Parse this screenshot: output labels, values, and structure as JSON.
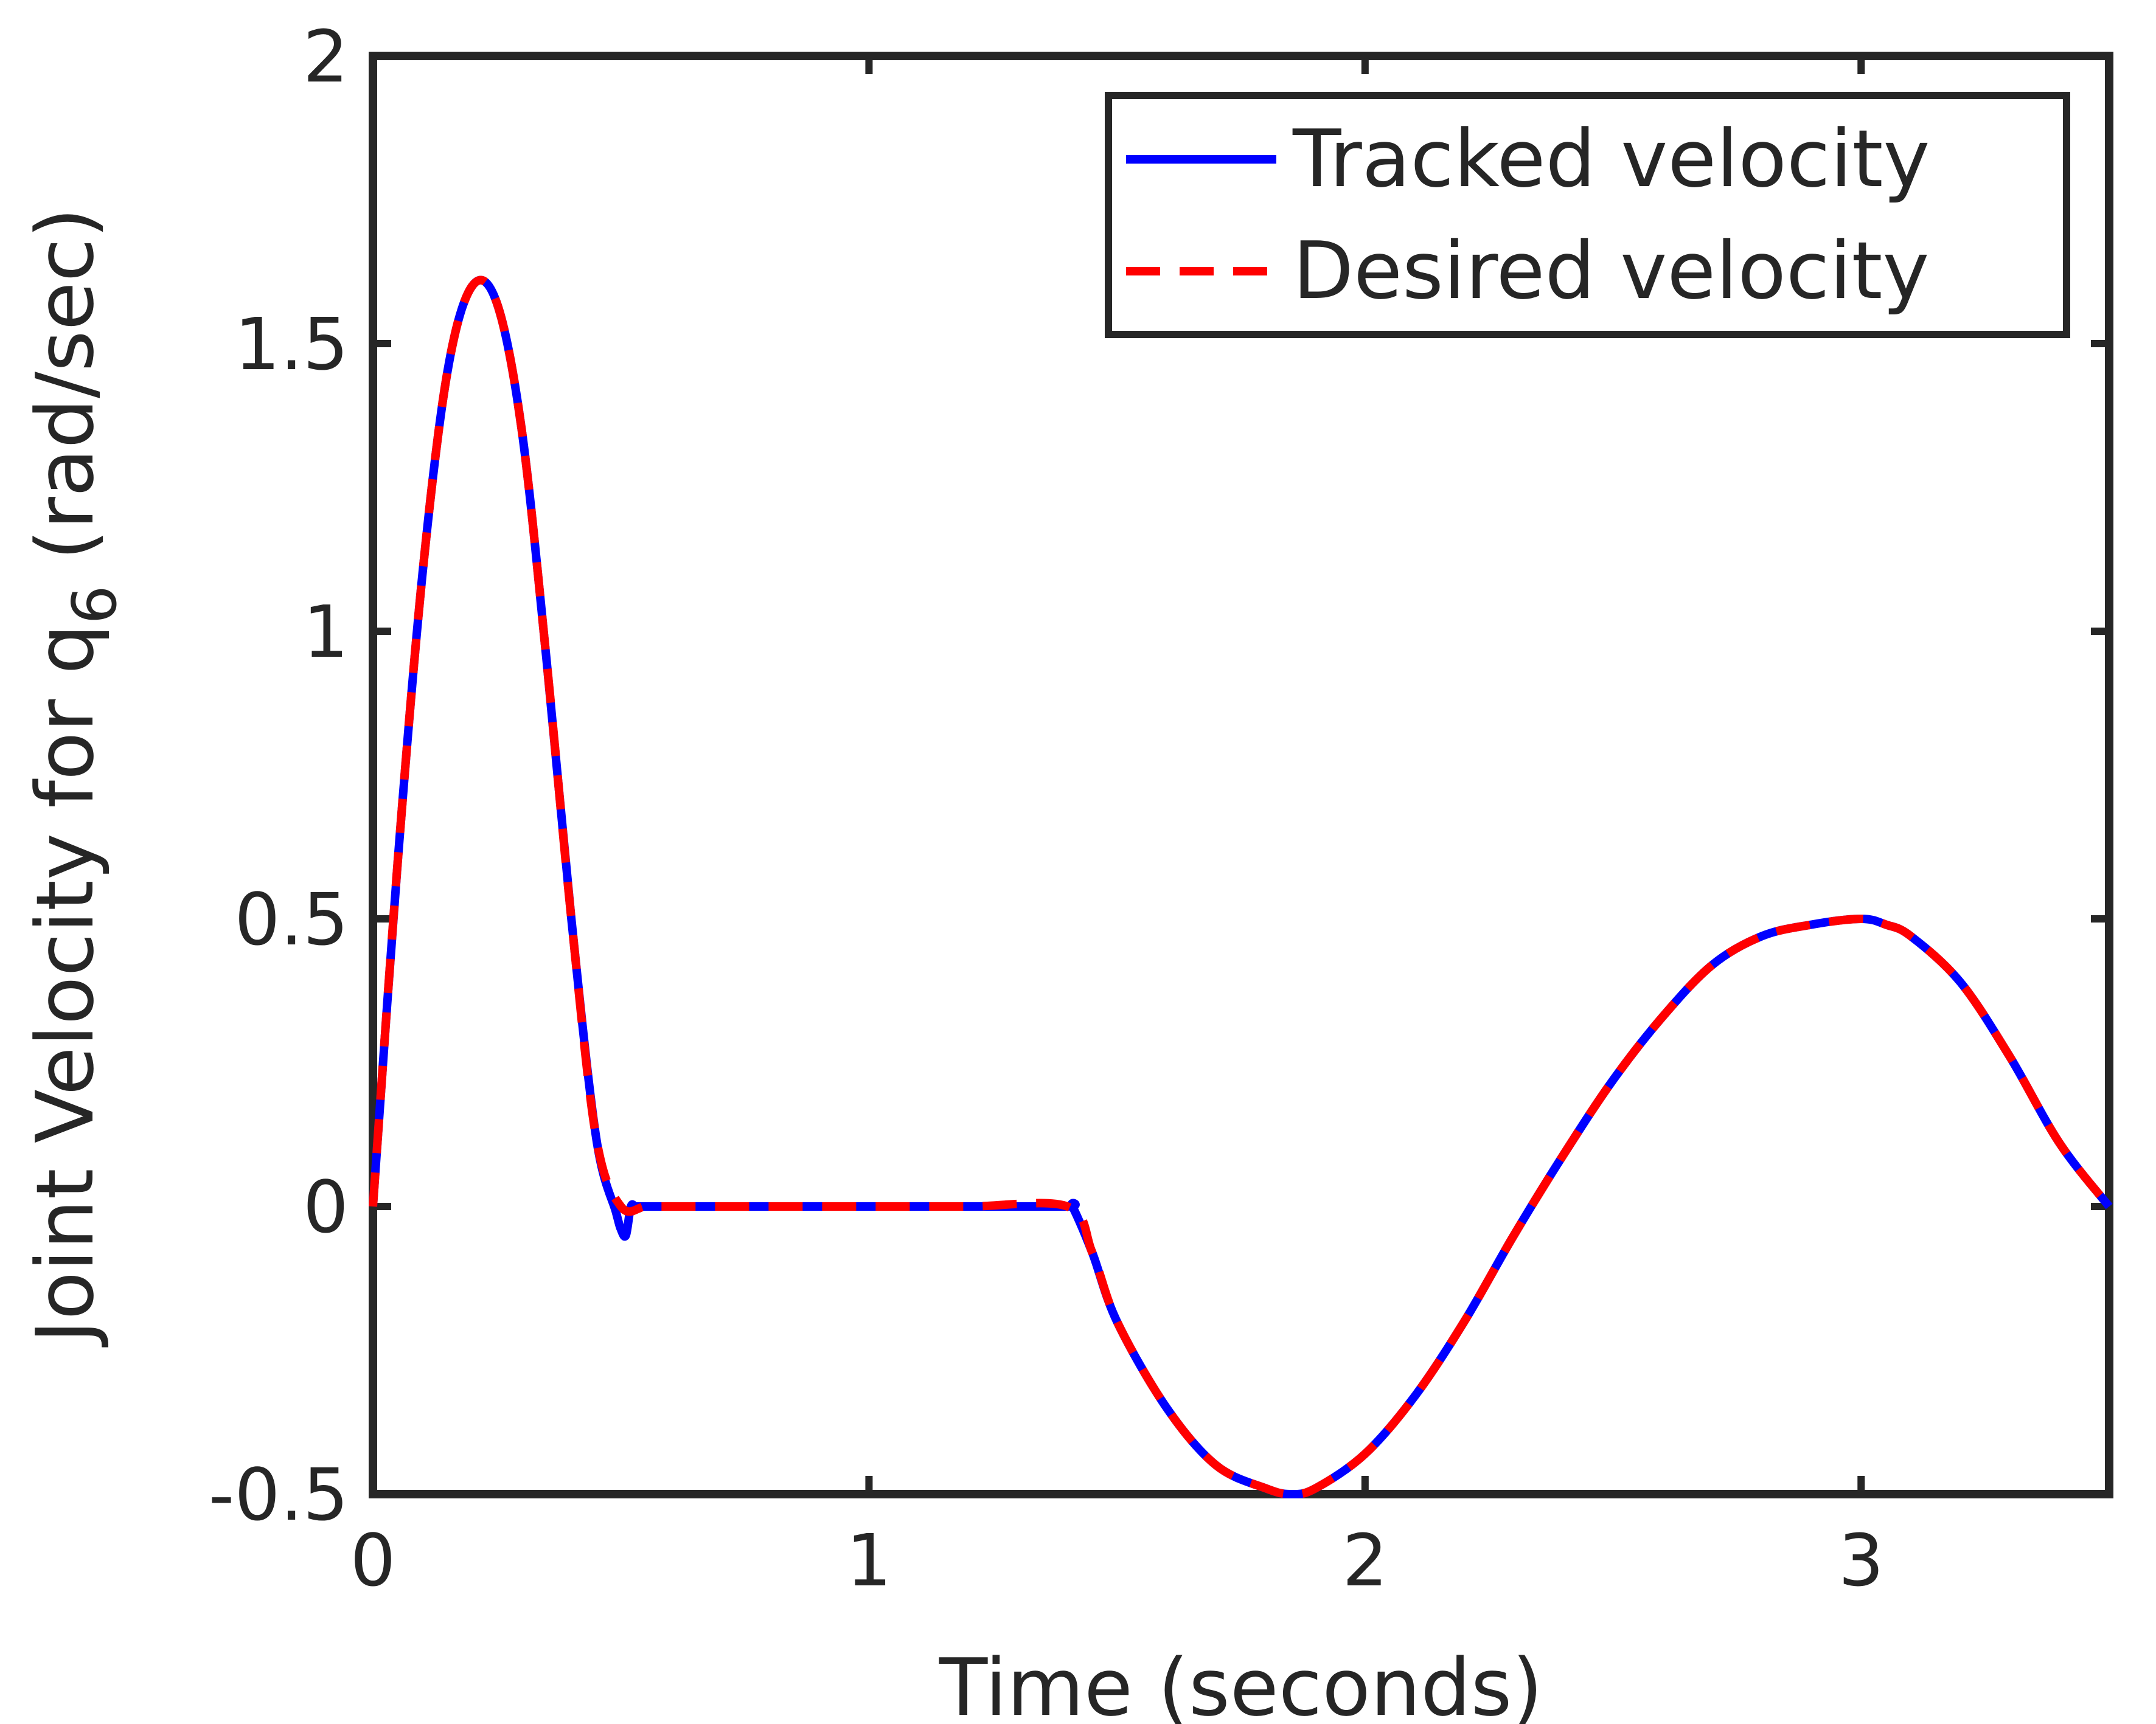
{
  "chart_data": {
    "type": "line",
    "title": "",
    "xlabel": "Time (seconds)",
    "ylabel": {
      "main": "Joint Velocity for q",
      "subscript": "6",
      "units": " (rad/sec)"
    },
    "xlim": [
      0,
      3.5
    ],
    "ylim": [
      -0.5,
      2
    ],
    "xticks": [
      0,
      1,
      2,
      3
    ],
    "yticks": [
      -0.5,
      0,
      0.5,
      1,
      1.5,
      2
    ],
    "xtick_labels": [
      "0",
      "1",
      "2",
      "3"
    ],
    "ytick_labels": [
      "-0.5",
      "0",
      "0.5",
      "1",
      "1.5",
      "2"
    ],
    "grid": false,
    "legend_position": "top-right",
    "series": [
      {
        "name": "Tracked velocity",
        "color": "#0000ff",
        "style": "solid",
        "x": [
          0,
          0.05,
          0.1,
          0.15,
          0.2,
          0.25,
          0.3,
          0.35,
          0.4,
          0.45,
          0.49,
          0.5,
          0.51,
          0.52,
          0.53,
          0.55,
          0.6,
          0.8,
          1.0,
          1.2,
          1.4,
          1.41,
          1.45,
          1.5,
          1.6,
          1.7,
          1.8,
          1.85,
          1.9,
          2.0,
          2.1,
          2.2,
          2.3,
          2.4,
          2.5,
          2.6,
          2.7,
          2.8,
          2.9,
          3.0,
          3.05,
          3.1,
          3.2,
          3.3,
          3.4,
          3.5
        ],
        "y": [
          0,
          0.6,
          1.1,
          1.45,
          1.6,
          1.57,
          1.35,
          0.95,
          0.5,
          0.12,
          -0.01,
          -0.04,
          -0.05,
          0.0,
          0.0,
          0.0,
          0.0,
          0.0,
          0.0,
          0.0,
          0.0,
          0.0,
          -0.08,
          -0.2,
          -0.35,
          -0.45,
          -0.49,
          -0.5,
          -0.49,
          -0.43,
          -0.33,
          -0.2,
          -0.05,
          0.09,
          0.22,
          0.33,
          0.42,
          0.47,
          0.49,
          0.5,
          0.49,
          0.47,
          0.39,
          0.26,
          0.11,
          0.0
        ]
      },
      {
        "name": "Desired velocity",
        "color": "#ff0000",
        "style": "dashed",
        "x": [
          0,
          0.05,
          0.1,
          0.15,
          0.2,
          0.25,
          0.3,
          0.35,
          0.4,
          0.45,
          0.5,
          0.55,
          0.6,
          0.8,
          1.0,
          1.2,
          1.4,
          1.45,
          1.5,
          1.6,
          1.7,
          1.8,
          1.85,
          1.9,
          2.0,
          2.1,
          2.2,
          2.3,
          2.4,
          2.5,
          2.6,
          2.7,
          2.8,
          2.9,
          3.0,
          3.05,
          3.1,
          3.2,
          3.3,
          3.4,
          3.5
        ],
        "y": [
          0,
          0.6,
          1.1,
          1.45,
          1.6,
          1.57,
          1.35,
          0.95,
          0.5,
          0.12,
          0.0,
          0.0,
          0.0,
          0.0,
          0.0,
          0.0,
          0.0,
          -0.08,
          -0.2,
          -0.35,
          -0.45,
          -0.49,
          -0.5,
          -0.49,
          -0.43,
          -0.33,
          -0.2,
          -0.05,
          0.09,
          0.22,
          0.33,
          0.42,
          0.47,
          0.49,
          0.5,
          0.49,
          0.47,
          0.39,
          0.26,
          0.11,
          0.0
        ]
      }
    ]
  }
}
